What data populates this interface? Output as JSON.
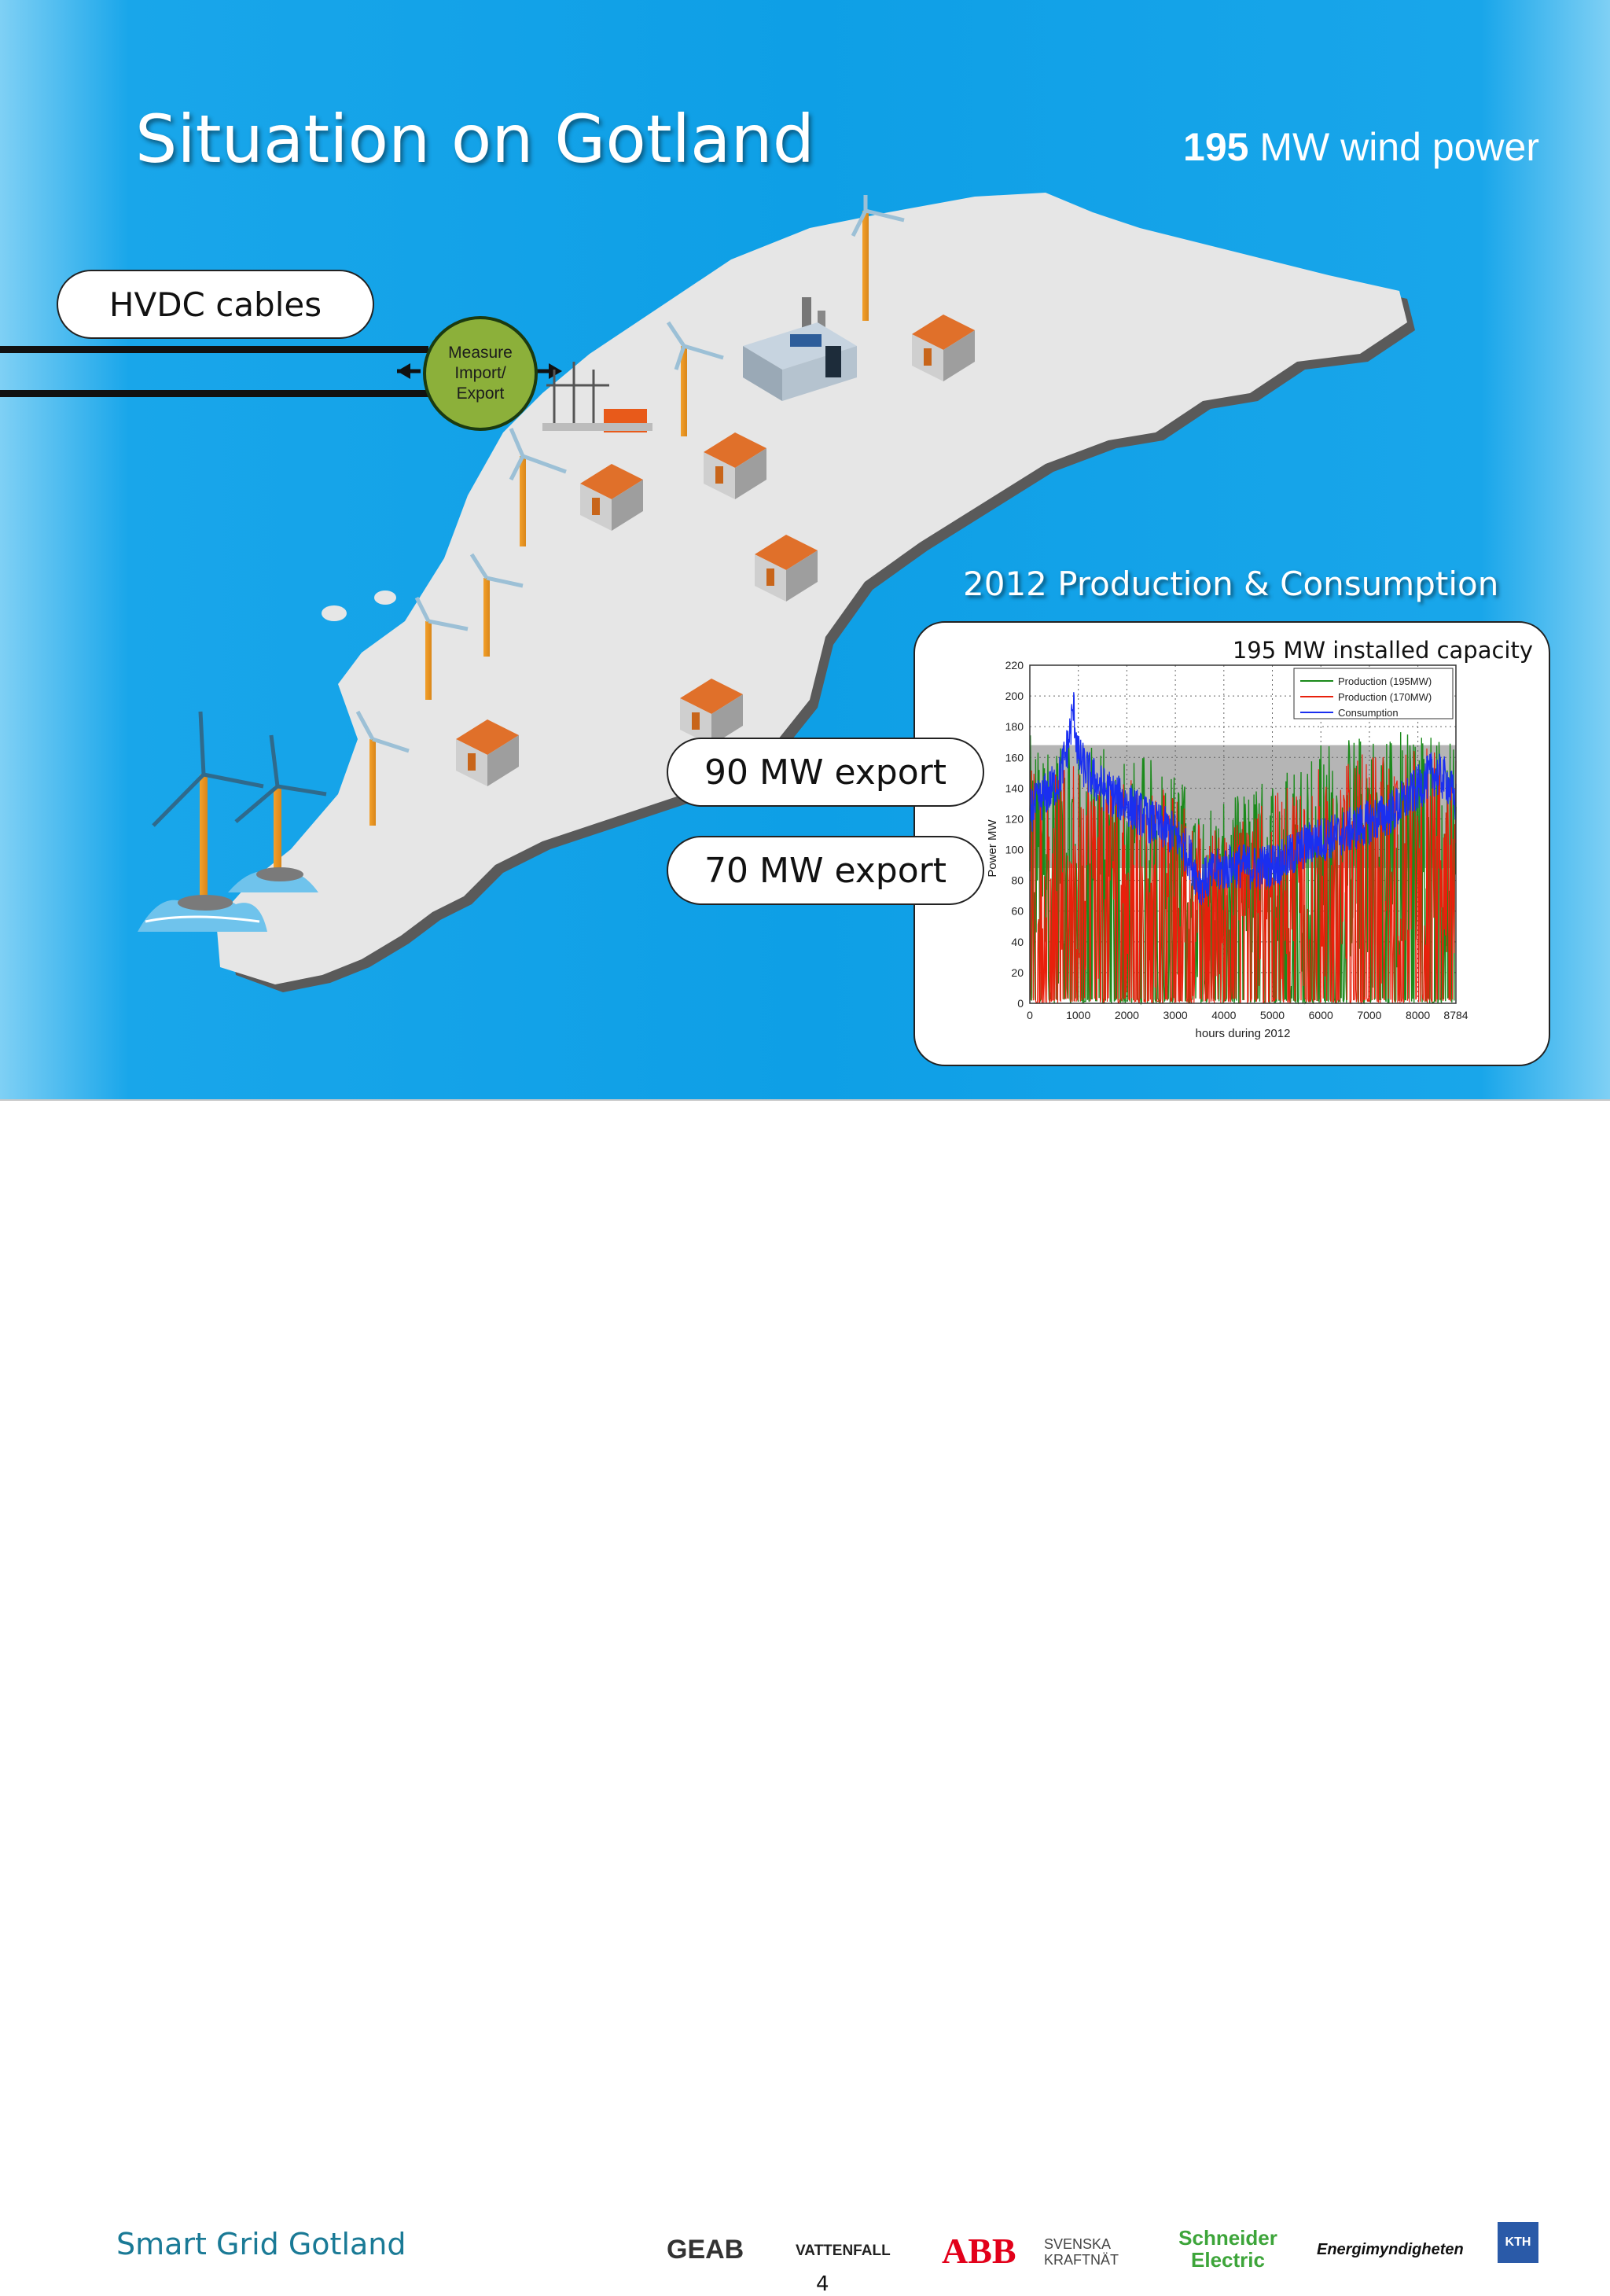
{
  "title": "Situation on Gotland",
  "wind_power": {
    "number": "195",
    "text": " MW wind power"
  },
  "hvdc_label": "HVDC cables",
  "measure": {
    "line1": "Measure",
    "line2": "Import/",
    "line3": "Export"
  },
  "chart_section_title": "2012 Production & Consumption",
  "callouts": {
    "export_90": "90 MW export",
    "export_70": "70 MW export"
  },
  "footer": {
    "brand": "Smart Grid Gotland",
    "page_number": "4",
    "logos": [
      "GEAB",
      "VATTENFALL",
      "ABB",
      "SVENSKA KRAFTNÄT",
      "Schneider Electric",
      "Energimyndigheten",
      "KTH"
    ]
  },
  "colors": {
    "sea": "#0e9fe6",
    "land": "#e6e6e6",
    "production_195": "#1b8a1b",
    "production_170": "#e8200c",
    "consumption": "#1a2ff0"
  },
  "chart_data": {
    "type": "line",
    "annotation": "195 MW installed capacity",
    "xlabel": "hours during 2012",
    "ylabel": "Power MW",
    "xlim": [
      0,
      8784
    ],
    "ylim": [
      0,
      220
    ],
    "x_ticks": [
      0,
      1000,
      2000,
      3000,
      4000,
      5000,
      6000,
      7000,
      8000,
      8784
    ],
    "y_ticks": [
      0,
      20,
      40,
      60,
      80,
      100,
      120,
      140,
      160,
      180,
      200,
      220
    ],
    "grid": true,
    "legend_position": "top-right",
    "shaded_bands": [
      {
        "y_from": 88,
        "y_to": 168
      }
    ],
    "series": [
      {
        "name": "Production (195MW)",
        "color": "#1b8a1b",
        "profile_x": [
          0,
          500,
          1000,
          1500,
          2000,
          2500,
          3000,
          3500,
          4000,
          4500,
          5000,
          5500,
          6000,
          6500,
          7000,
          7500,
          8000,
          8500,
          8784
        ],
        "profile_max": [
          175,
          165,
          170,
          168,
          165,
          160,
          150,
          135,
          130,
          140,
          150,
          160,
          170,
          175,
          178,
          180,
          182,
          175,
          170
        ]
      },
      {
        "name": "Production (170MW)",
        "color": "#e8200c",
        "profile_x": [
          0,
          500,
          1000,
          1500,
          2000,
          2500,
          3000,
          3500,
          4000,
          4500,
          5000,
          5500,
          6000,
          6500,
          7000,
          7500,
          8000,
          8500,
          8784
        ],
        "profile_max": [
          160,
          150,
          160,
          150,
          150,
          145,
          135,
          120,
          115,
          125,
          135,
          145,
          155,
          160,
          165,
          165,
          168,
          165,
          160
        ]
      },
      {
        "name": "Consumption",
        "color": "#1a2ff0",
        "x": [
          0,
          300,
          600,
          800,
          900,
          1000,
          1200,
          1500,
          2000,
          2500,
          3000,
          3300,
          3500,
          3800,
          4200,
          4700,
          5200,
          5800,
          6400,
          7000,
          7500,
          8000,
          8300,
          8600,
          8784
        ],
        "y": [
          125,
          135,
          145,
          170,
          192,
          160,
          150,
          140,
          130,
          118,
          110,
          95,
          78,
          85,
          90,
          88,
          92,
          105,
          110,
          118,
          125,
          140,
          150,
          145,
          130
        ]
      }
    ]
  }
}
